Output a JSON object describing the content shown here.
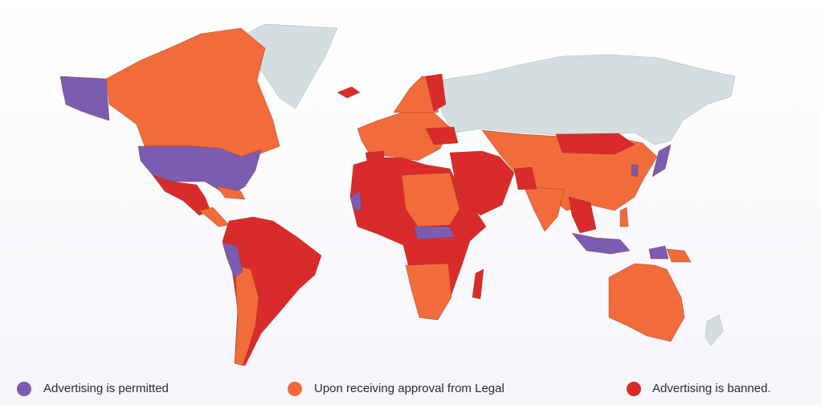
{
  "legend": {
    "items": [
      {
        "label": "Advertising is permitted",
        "color": "#7b5cb0"
      },
      {
        "label": "Upon receiving approval from Legal",
        "color": "#f26b3a"
      },
      {
        "label": "Advertising is banned.",
        "color": "#d92b2b"
      }
    ]
  }
}
